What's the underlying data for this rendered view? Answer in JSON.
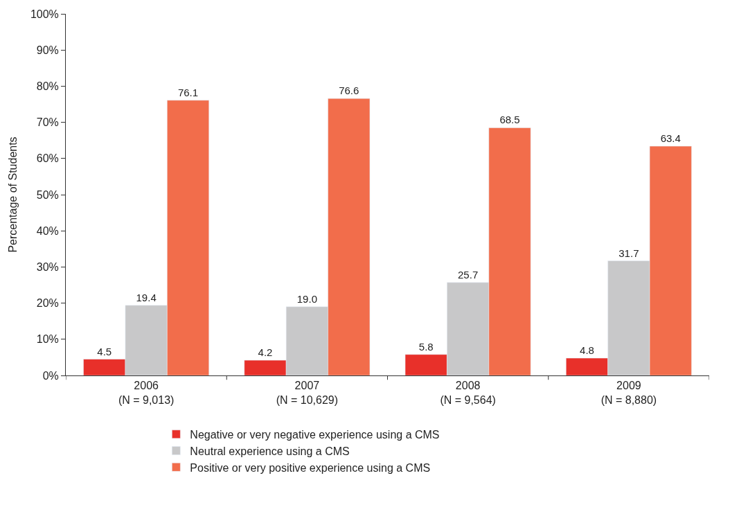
{
  "chart_data": {
    "type": "bar",
    "ylabel": "Percentage of Students",
    "categories": [
      "2006\n(N = 9,013)",
      "2007\n(N = 10,629)",
      "2008\n(N = 9,564)",
      "2009\n(N = 8,880)"
    ],
    "series": [
      {
        "name": "Negative or very negative experience using a CMS",
        "color": "#e8302a",
        "values": [
          4.5,
          4.2,
          5.8,
          4.8
        ],
        "value_labels": [
          "4.5",
          "4.2",
          "5.8",
          "4.8"
        ]
      },
      {
        "name": "Neutral experience using a CMS",
        "color": "#c8c8c9",
        "values": [
          19.4,
          19.0,
          25.7,
          31.7
        ],
        "value_labels": [
          "19.4",
          "19.0",
          "25.7",
          "31.7"
        ]
      },
      {
        "name": "Positive or very positive experience using a CMS",
        "color": "#f26d4b",
        "values": [
          76.1,
          76.6,
          68.5,
          63.4
        ],
        "value_labels": [
          "76.1",
          "76.6",
          "68.5",
          "63.4"
        ]
      }
    ],
    "ylim": [
      0,
      100
    ],
    "yticks": [
      {
        "value": 0,
        "label": "0%"
      },
      {
        "value": 10,
        "label": "10%"
      },
      {
        "value": 20,
        "label": "20%"
      },
      {
        "value": 30,
        "label": "30%"
      },
      {
        "value": 40,
        "label": "40%"
      },
      {
        "value": 50,
        "label": "50%"
      },
      {
        "value": 60,
        "label": "60%"
      },
      {
        "value": 70,
        "label": "70%"
      },
      {
        "value": 80,
        "label": "80%"
      },
      {
        "value": 90,
        "label": "90%"
      },
      {
        "value": 100,
        "label": "100%"
      }
    ],
    "legend": "bottom"
  }
}
